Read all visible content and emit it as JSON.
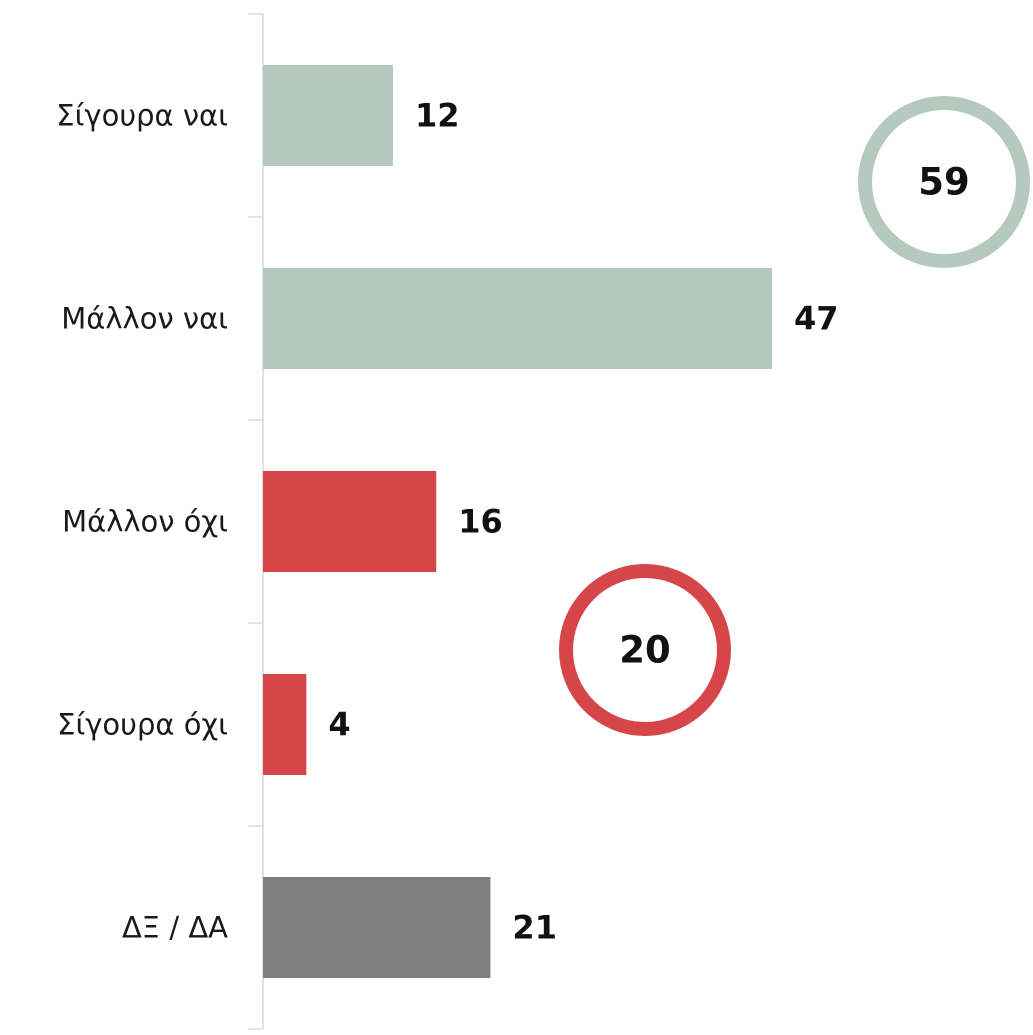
{
  "chart_data": {
    "type": "bar",
    "orientation": "horizontal",
    "categories": [
      "Σίγουρα ναι",
      "Μάλλον ναι",
      "Μάλλον όχι",
      "Σίγουρα όχι",
      "ΔΞ / ΔΑ"
    ],
    "values": [
      12,
      47,
      16,
      4,
      21
    ],
    "colors": [
      "#b5c9c0",
      "#b5c9c0",
      "#d64649",
      "#d64649",
      "#7f7f7f"
    ],
    "annotations": [
      {
        "value": 59,
        "color": "#b5c9c0"
      },
      {
        "value": 20,
        "color": "#d64649"
      }
    ]
  }
}
